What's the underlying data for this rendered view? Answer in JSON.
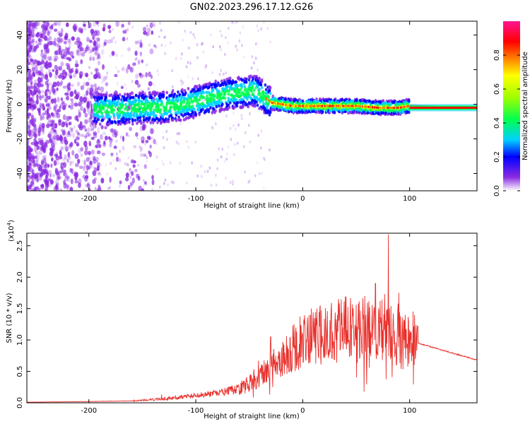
{
  "title": "GN02.2023.296.17.12.G26",
  "colors": {
    "snr_line": "#e8302c",
    "sparse_dots": "#8a2be2",
    "background": "#ffffff",
    "colormap": [
      "#ffffff",
      "#8a2be2",
      "#0000ff",
      "#00d0ff",
      "#00ff50",
      "#a0ff00",
      "#ffff00",
      "#ff8000",
      "#ff0000",
      "#ff1493"
    ]
  },
  "chart_data": [
    {
      "type": "heatmap",
      "xlabel": "Height of straight line (km)",
      "ylabel": "Frequency (Hz)",
      "xlim": [
        -258,
        163
      ],
      "ylim": [
        -50,
        48
      ],
      "xticks": [
        -200,
        -100,
        0,
        100
      ],
      "xtick_labels": [
        "-200",
        "-100",
        "0",
        "100"
      ],
      "yticks": [
        -40,
        -20,
        0,
        20,
        40
      ],
      "ytick_labels": [
        "-40",
        "-20",
        "0",
        "20",
        "40"
      ],
      "colorbar": {
        "label": "Normalized spectral amplitude",
        "range": [
          0,
          1
        ],
        "ticks": [
          0.0,
          0.2,
          0.4,
          0.6,
          0.8
        ],
        "tick_labels": [
          "0.0",
          "0.2",
          "0.4",
          "0.6",
          "0.8"
        ]
      },
      "ridge": {
        "x": [
          -190,
          -170,
          -150,
          -130,
          -110,
          -90,
          -70,
          -55,
          -45,
          -38,
          -30,
          -10,
          10,
          30,
          50,
          70,
          90,
          100,
          163
        ],
        "y": [
          -3,
          -3,
          -2,
          -2,
          0,
          3,
          6,
          7,
          8,
          5,
          1,
          -1,
          -1,
          -1,
          -1,
          -2,
          -2,
          -1,
          -2
        ]
      }
    },
    {
      "type": "line",
      "xlabel": "Height of straight line (km)",
      "ylabel": "SNR (10 * v/v)",
      "multiplier_label": "(x10",
      "multiplier_exp": "4",
      "multiplier_close": ")",
      "xlim": [
        -258,
        163
      ],
      "ylim": [
        0,
        2.7
      ],
      "xticks": [
        -200,
        -100,
        0,
        100
      ],
      "xtick_labels": [
        "-200",
        "-100",
        "0",
        "100"
      ],
      "yticks": [
        0.0,
        0.5,
        1.0,
        1.5,
        2.0,
        2.5
      ],
      "ytick_labels": [
        "0.0",
        "0.5",
        "1.0",
        "1.5",
        "2.0",
        "2.5"
      ],
      "envelope": {
        "x": [
          -258,
          -200,
          -160,
          -140,
          -120,
          -100,
          -80,
          -60,
          -45,
          -30,
          -20,
          -10,
          0,
          20,
          40,
          60,
          70,
          80,
          90,
          100,
          108,
          163
        ],
        "y": [
          0.01,
          0.02,
          0.03,
          0.05,
          0.08,
          0.12,
          0.15,
          0.22,
          0.35,
          0.55,
          0.7,
          0.85,
          0.95,
          1.1,
          1.2,
          1.15,
          1.2,
          1.2,
          1.05,
          1.0,
          0.95,
          0.68
        ]
      },
      "spikes": [
        {
          "x": 80,
          "y": 2.68
        },
        {
          "x": 68,
          "y": 1.9
        },
        {
          "x": 58,
          "y": 1.7
        },
        {
          "x": 90,
          "y": 1.75
        },
        {
          "x": 8,
          "y": 1.5
        },
        {
          "x": -30,
          "y": 1.05
        },
        {
          "x": -132,
          "y": 0.13
        }
      ]
    }
  ]
}
